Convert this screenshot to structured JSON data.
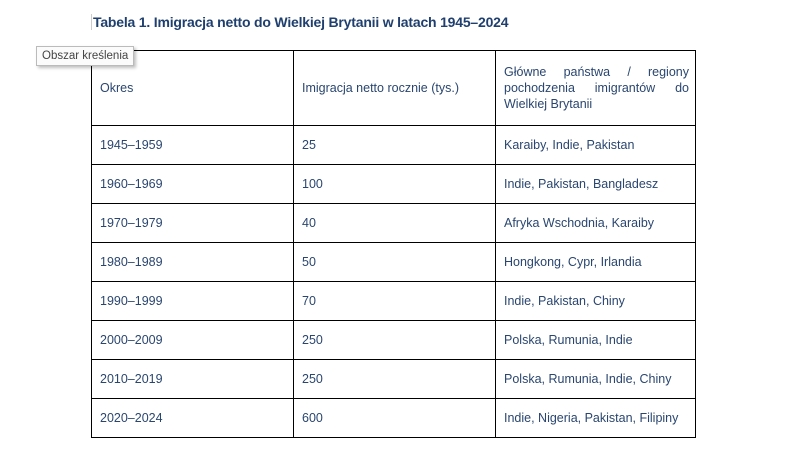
{
  "title": "Tabela 1. Imigracja netto do Wielkiej Brytanii w latach 1945–2024",
  "tooltip": "Obszar kreślenia",
  "table": {
    "headers": [
      "Okres",
      "Imigracja netto rocznie (tys.)",
      "Główne państwa / regiony pochodzenia imigrantów do Wielkiej Brytanii"
    ],
    "rows": [
      [
        "1945–1959",
        "25",
        "Karaiby, Indie, Pakistan"
      ],
      [
        "1960–1969",
        "100",
        "Indie, Pakistan, Bangladesz"
      ],
      [
        "1970–1979",
        "40",
        "Afryka Wschodnia, Karaiby"
      ],
      [
        "1980–1989",
        "50",
        "Hongkong, Cypr, Irlandia"
      ],
      [
        "1990–1999",
        "70",
        "Indie, Pakistan, Chiny"
      ],
      [
        "2000–2009",
        "250",
        "Polska, Rumunia, Indie"
      ],
      [
        "2010–2019",
        "250",
        "Polska, Rumunia, Indie, Chiny"
      ],
      [
        "2020–2024",
        "600",
        "Indie, Nigeria, Pakistan, Filipiny"
      ]
    ]
  }
}
